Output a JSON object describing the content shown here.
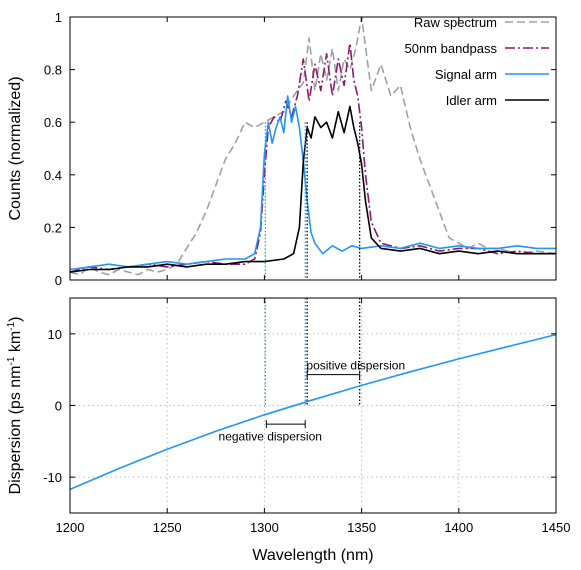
{
  "chart_data": [
    {
      "type": "line",
      "ylabel": "Counts (normalized)",
      "xlim": [
        1200,
        1450
      ],
      "ylim": [
        0,
        1
      ],
      "xticks": [
        1200,
        1250,
        1300,
        1350,
        1400,
        1450
      ],
      "yticks": [
        0,
        0.2,
        0.4,
        0.6,
        0.8,
        1
      ],
      "ytick_labels": [
        "0",
        "0.2",
        "0.4",
        "0.6",
        "0.8",
        "1"
      ],
      "grid": false,
      "legend_position": "top-right",
      "series": [
        {
          "name": "Raw spectrum",
          "color": "#a0a0a0",
          "style": "dashed",
          "x": [
            1200,
            1205,
            1210,
            1215,
            1220,
            1225,
            1230,
            1235,
            1240,
            1245,
            1250,
            1255,
            1260,
            1265,
            1270,
            1275,
            1280,
            1285,
            1290,
            1295,
            1300,
            1305,
            1310,
            1315,
            1320,
            1323,
            1326,
            1329,
            1332,
            1335,
            1338,
            1341,
            1344,
            1347,
            1350,
            1355,
            1360,
            1365,
            1370,
            1375,
            1380,
            1385,
            1390,
            1395,
            1400,
            1405,
            1410,
            1415,
            1420,
            1430,
            1440,
            1450
          ],
          "y": [
            0.03,
            0.02,
            0.05,
            0.03,
            0.02,
            0.04,
            0.03,
            0.02,
            0.04,
            0.03,
            0.04,
            0.06,
            0.12,
            0.18,
            0.26,
            0.36,
            0.46,
            0.52,
            0.6,
            0.58,
            0.6,
            0.62,
            0.64,
            0.7,
            0.75,
            0.92,
            0.72,
            0.86,
            0.76,
            0.88,
            0.72,
            0.84,
            0.8,
            0.88,
            1.0,
            0.72,
            0.82,
            0.7,
            0.74,
            0.58,
            0.46,
            0.36,
            0.26,
            0.16,
            0.14,
            0.12,
            0.14,
            0.12,
            0.12,
            0.1,
            0.11,
            0.1
          ]
        },
        {
          "name": "50nm bandpass",
          "color": "#8b1a6b",
          "style": "dash-dot",
          "x": [
            1200,
            1210,
            1220,
            1230,
            1240,
            1250,
            1260,
            1270,
            1280,
            1290,
            1295,
            1298,
            1300,
            1302,
            1305,
            1308,
            1311,
            1314,
            1317,
            1320,
            1323,
            1326,
            1329,
            1332,
            1335,
            1338,
            1341,
            1344,
            1346,
            1348,
            1350,
            1352,
            1355,
            1360,
            1370,
            1380,
            1390,
            1400,
            1410,
            1420,
            1430,
            1440,
            1450
          ],
          "y": [
            0.03,
            0.05,
            0.04,
            0.05,
            0.06,
            0.05,
            0.06,
            0.07,
            0.06,
            0.06,
            0.08,
            0.18,
            0.4,
            0.58,
            0.62,
            0.6,
            0.68,
            0.62,
            0.7,
            0.84,
            0.68,
            0.82,
            0.72,
            0.86,
            0.7,
            0.84,
            0.74,
            0.9,
            0.76,
            0.7,
            0.58,
            0.4,
            0.22,
            0.14,
            0.12,
            0.13,
            0.11,
            0.12,
            0.12,
            0.1,
            0.11,
            0.1,
            0.1
          ]
        },
        {
          "name": "Signal arm",
          "color": "#2196f3",
          "style": "solid",
          "x": [
            1200,
            1210,
            1220,
            1230,
            1240,
            1250,
            1260,
            1270,
            1280,
            1290,
            1295,
            1298,
            1300,
            1302,
            1304,
            1306,
            1308,
            1310,
            1312,
            1314,
            1316,
            1318,
            1320,
            1322,
            1324,
            1326,
            1330,
            1335,
            1340,
            1345,
            1350,
            1360,
            1370,
            1380,
            1390,
            1400,
            1410,
            1420,
            1430,
            1440,
            1450
          ],
          "y": [
            0.04,
            0.05,
            0.06,
            0.05,
            0.06,
            0.07,
            0.06,
            0.07,
            0.08,
            0.08,
            0.1,
            0.2,
            0.48,
            0.6,
            0.52,
            0.58,
            0.62,
            0.56,
            0.7,
            0.6,
            0.66,
            0.58,
            0.45,
            0.3,
            0.18,
            0.14,
            0.1,
            0.13,
            0.11,
            0.13,
            0.12,
            0.13,
            0.12,
            0.14,
            0.12,
            0.13,
            0.12,
            0.12,
            0.13,
            0.12,
            0.12
          ]
        },
        {
          "name": "Idler arm",
          "color": "#000000",
          "style": "solid",
          "x": [
            1200,
            1210,
            1220,
            1230,
            1240,
            1250,
            1260,
            1270,
            1280,
            1290,
            1300,
            1310,
            1315,
            1318,
            1320,
            1322,
            1324,
            1326,
            1329,
            1332,
            1335,
            1338,
            1341,
            1344,
            1346,
            1348,
            1350,
            1352,
            1355,
            1360,
            1370,
            1380,
            1390,
            1400,
            1410,
            1420,
            1430,
            1440,
            1450
          ],
          "y": [
            0.03,
            0.04,
            0.04,
            0.05,
            0.05,
            0.06,
            0.05,
            0.06,
            0.06,
            0.07,
            0.07,
            0.08,
            0.1,
            0.2,
            0.45,
            0.58,
            0.54,
            0.62,
            0.58,
            0.6,
            0.54,
            0.64,
            0.56,
            0.66,
            0.58,
            0.52,
            0.44,
            0.3,
            0.16,
            0.12,
            0.11,
            0.12,
            0.1,
            0.11,
            0.1,
            0.11,
            0.1,
            0.1,
            0.1
          ]
        }
      ],
      "vlines": [
        {
          "x": 1300.5,
          "color": "#2196f3",
          "style": "dotted"
        },
        {
          "x": 1321,
          "color": "#2196f3",
          "style": "dotted"
        },
        {
          "x": 1322,
          "color": "#000000",
          "style": "dotted"
        },
        {
          "x": 1349,
          "color": "#000000",
          "style": "dotted"
        }
      ]
    },
    {
      "type": "line",
      "xlabel": "Wavelength (nm)",
      "ylabel": "Dispersion (ps nm",
      "ylabel_sup1": "-1",
      "ylabel_mid": " km",
      "ylabel_sup2": "-1",
      "ylabel_end": ")",
      "xlim": [
        1200,
        1450
      ],
      "ylim": [
        -15,
        15
      ],
      "xticks": [
        1200,
        1250,
        1300,
        1350,
        1400,
        1450
      ],
      "yticks": [
        -10,
        0,
        10
      ],
      "ytick_labels": [
        "-10",
        "0",
        "10"
      ],
      "grid": true,
      "series": [
        {
          "color": "#2196f3",
          "style": "solid",
          "x": [
            1200,
            1225,
            1250,
            1275,
            1300,
            1325,
            1350,
            1375,
            1400,
            1425,
            1450
          ],
          "y": [
            -11.7,
            -8.8,
            -6.1,
            -3.6,
            -1.3,
            0.8,
            2.8,
            4.7,
            6.5,
            8.2,
            9.9
          ]
        }
      ],
      "vlines": [
        {
          "x": 1300.5,
          "color": "#2196f3",
          "style": "dotted"
        },
        {
          "x": 1321,
          "color": "#2196f3",
          "style": "dotted"
        },
        {
          "x": 1322,
          "color": "#000000",
          "style": "dotted"
        },
        {
          "x": 1349,
          "color": "#000000",
          "style": "dotted"
        }
      ],
      "annotations": [
        {
          "text": "positive dispersion",
          "bar_x": [
            1322,
            1349
          ],
          "bar_y": 4.3,
          "text_x": 1347,
          "text_y": 5.6
        },
        {
          "text": "negative dispersion",
          "bar_x": [
            1301,
            1321
          ],
          "bar_y": -2.6,
          "text_x": 1303,
          "text_y": -4.3
        }
      ]
    }
  ]
}
